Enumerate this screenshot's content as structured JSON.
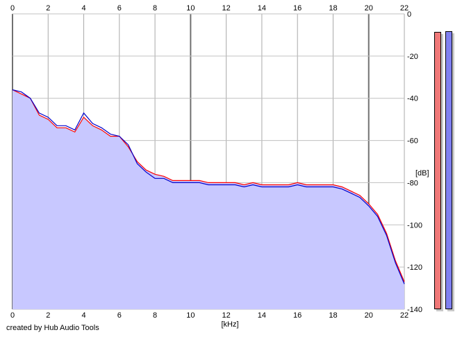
{
  "chart_data": {
    "type": "area",
    "xlabel": "[kHz]",
    "ylabel": "[dB]",
    "xlim": [
      0,
      22
    ],
    "ylim": [
      -140,
      0
    ],
    "x_ticks": [
      "0",
      "2",
      "4",
      "6",
      "8",
      "10",
      "12",
      "14",
      "16",
      "18",
      "20",
      "22"
    ],
    "y_ticks": [
      "0",
      "-20",
      "-40",
      "-60",
      "-80",
      "-100",
      "-120",
      "-140"
    ],
    "grid": true,
    "series": [
      {
        "color": "#ff0000",
        "x": [
          0,
          0.5,
          1,
          1.5,
          2,
          2.5,
          3,
          3.5,
          4,
          4.5,
          5,
          5.5,
          6,
          6.5,
          7,
          7.5,
          8,
          8.5,
          9,
          9.5,
          10,
          10.5,
          11,
          11.5,
          12,
          12.5,
          13,
          13.5,
          14,
          14.5,
          15,
          15.5,
          16,
          16.5,
          17,
          17.5,
          18,
          18.5,
          19,
          19.5,
          20,
          20.5,
          21,
          21.5,
          22
        ],
        "y": [
          -36,
          -38,
          -40,
          -48,
          -50,
          -54,
          -54,
          -56,
          -49,
          -53,
          -55,
          -58,
          -58,
          -63,
          -70,
          -74,
          -76,
          -77,
          -79,
          -79,
          -79,
          -79,
          -80,
          -80,
          -80,
          -80,
          -81,
          -80,
          -81,
          -81,
          -81,
          -81,
          -80,
          -81,
          -81,
          -81,
          -81,
          -82,
          -84,
          -86,
          -90,
          -95,
          -104,
          -117,
          -127
        ]
      },
      {
        "color": "#0000cc",
        "x": [
          0,
          0.5,
          1,
          1.5,
          2,
          2.5,
          3,
          3.5,
          4,
          4.5,
          5,
          5.5,
          6,
          6.5,
          7,
          7.5,
          8,
          8.5,
          9,
          9.5,
          10,
          10.5,
          11,
          11.5,
          12,
          12.5,
          13,
          13.5,
          14,
          14.5,
          15,
          15.5,
          16,
          16.5,
          17,
          17.5,
          18,
          18.5,
          19,
          19.5,
          20,
          20.5,
          21,
          21.5,
          22
        ],
        "y": [
          -36,
          -37,
          -40,
          -47,
          -49,
          -53,
          -53,
          -55,
          -47,
          -52,
          -54,
          -57,
          -58,
          -62,
          -71,
          -75,
          -78,
          -78,
          -80,
          -80,
          -80,
          -80,
          -81,
          -81,
          -81,
          -81,
          -82,
          -81,
          -82,
          -82,
          -82,
          -82,
          -81,
          -82,
          -82,
          -82,
          -82,
          -83,
          -85,
          -87,
          -91,
          -96,
          -105,
          -118,
          -128
        ]
      }
    ],
    "area_fill": "#c8c8ff"
  },
  "meters": {
    "left": {
      "color": "#f07878",
      "level": 1.0
    },
    "right": {
      "color": "#8080f0",
      "level": 1.0
    }
  },
  "credit": "created by Hub Audio Tools"
}
